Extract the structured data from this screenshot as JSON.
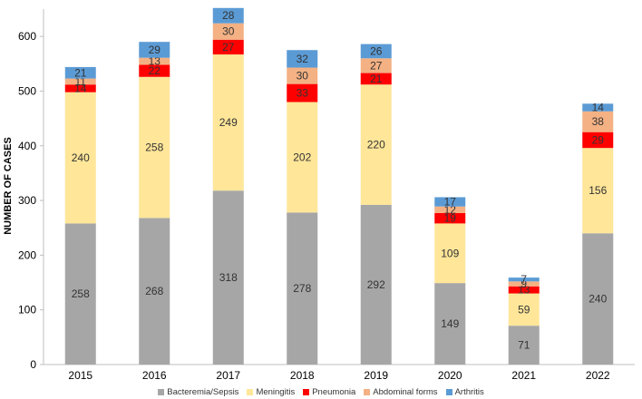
{
  "chart_data": {
    "type": "bar",
    "stacked": true,
    "title": "",
    "xlabel": "",
    "ylabel": "NUMBER OF CASES",
    "ylim": [
      0,
      650
    ],
    "yticks": [
      "0",
      "100",
      "200",
      "300",
      "400",
      "500",
      "600"
    ],
    "categories": [
      "2015",
      "2016",
      "2017",
      "2018",
      "2019",
      "2020",
      "2021",
      "2022"
    ],
    "series": [
      {
        "name": "Bacteremia/Sepsis",
        "color": "#a6a6a6",
        "values": [
          258,
          268,
          318,
          278,
          292,
          149,
          71,
          240
        ]
      },
      {
        "name": "Meningitis",
        "color": "#ffe699",
        "values": [
          240,
          258,
          249,
          202,
          220,
          109,
          59,
          156
        ]
      },
      {
        "name": "Pneumonia",
        "color": "#ff0000",
        "values": [
          14,
          22,
          27,
          33,
          21,
          19,
          13,
          29
        ]
      },
      {
        "name": "Abdominal forms",
        "color": "#f4b183",
        "values": [
          11,
          13,
          30,
          30,
          27,
          12,
          9,
          38
        ]
      },
      {
        "name": "Arthritis",
        "color": "#5b9bd5",
        "values": [
          21,
          29,
          28,
          32,
          26,
          17,
          7,
          14
        ]
      }
    ],
    "legend_position": "bottom",
    "grid": false
  }
}
